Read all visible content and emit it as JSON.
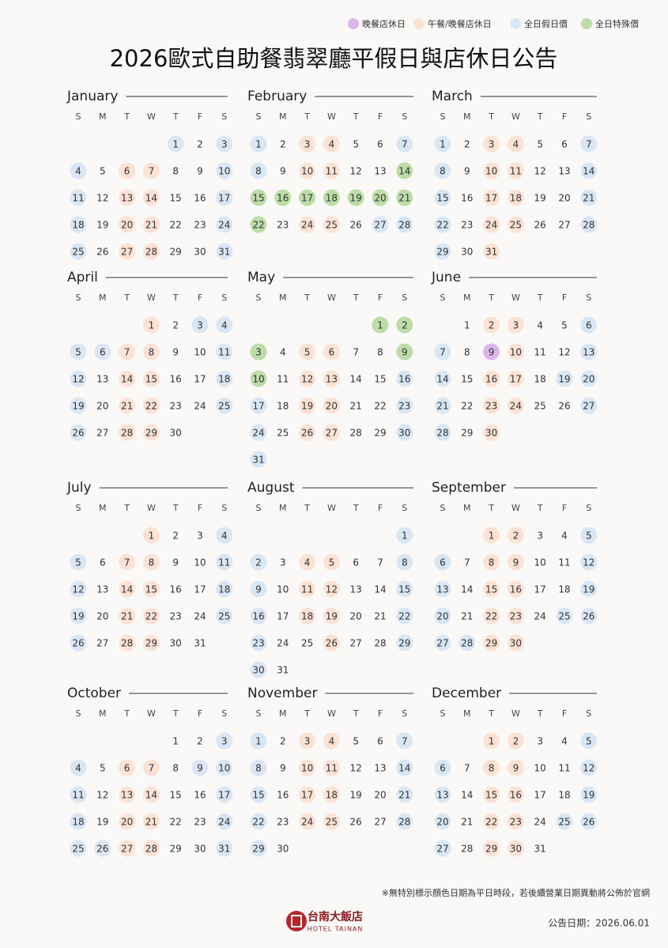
{
  "legend": [
    {
      "label": "晚餐店休日",
      "color": "#dcb5ec"
    },
    {
      "label": "午餐/晚餐店休日",
      "color": "#fbe2d5"
    },
    {
      "label": "全日假日價",
      "color": "#d9e7f5"
    },
    {
      "label": "全日特殊價",
      "color": "#bcdca8"
    }
  ],
  "title": "2026歐式自助餐翡翠廳平假日與店休日公告",
  "weekdays": [
    "S",
    "M",
    "T",
    "W",
    "T",
    "F",
    "S"
  ],
  "months": [
    {
      "name": "January",
      "first_weekday": 4,
      "days": [
        1,
        2,
        3,
        4,
        5,
        6,
        7,
        8,
        9,
        10,
        11,
        12,
        13,
        14,
        15,
        16,
        17,
        18,
        19,
        20,
        21,
        22,
        23,
        24,
        25,
        26,
        27,
        28,
        29,
        30,
        31
      ],
      "status": [
        2,
        null,
        2,
        2,
        null,
        1,
        1,
        null,
        null,
        2,
        2,
        null,
        1,
        1,
        null,
        null,
        2,
        2,
        null,
        1,
        1,
        null,
        null,
        2,
        2,
        null,
        1,
        1,
        null,
        null,
        2
      ]
    },
    {
      "name": "February",
      "first_weekday": 0,
      "days": [
        1,
        2,
        3,
        4,
        5,
        6,
        7,
        8,
        9,
        10,
        11,
        12,
        13,
        14,
        15,
        16,
        17,
        18,
        19,
        20,
        21,
        22,
        23,
        24,
        25,
        26,
        27,
        28
      ],
      "status": [
        2,
        null,
        1,
        1,
        null,
        null,
        2,
        2,
        null,
        1,
        1,
        null,
        null,
        3,
        3,
        3,
        3,
        3,
        3,
        3,
        3,
        3,
        null,
        1,
        1,
        null,
        2,
        2
      ]
    },
    {
      "name": "March",
      "first_weekday": 0,
      "days": [
        1,
        2,
        3,
        4,
        5,
        6,
        7,
        8,
        9,
        10,
        11,
        12,
        13,
        14,
        15,
        16,
        17,
        18,
        19,
        20,
        21,
        22,
        23,
        24,
        25,
        26,
        27,
        28,
        29,
        30,
        31
      ],
      "status": [
        2,
        null,
        1,
        1,
        null,
        null,
        2,
        2,
        null,
        1,
        1,
        null,
        null,
        2,
        2,
        null,
        1,
        1,
        null,
        null,
        2,
        2,
        null,
        1,
        1,
        null,
        null,
        2,
        2,
        null,
        1
      ]
    },
    {
      "name": "April",
      "first_weekday": 3,
      "days": [
        1,
        2,
        3,
        4,
        5,
        6,
        7,
        8,
        9,
        10,
        11,
        12,
        13,
        14,
        15,
        16,
        17,
        18,
        19,
        20,
        21,
        22,
        23,
        24,
        25,
        26,
        27,
        28,
        29,
        30
      ],
      "status": [
        1,
        null,
        2,
        2,
        2,
        2,
        1,
        1,
        null,
        null,
        2,
        2,
        null,
        1,
        1,
        null,
        null,
        2,
        2,
        null,
        1,
        1,
        null,
        null,
        2,
        2,
        null,
        1,
        1,
        null
      ]
    },
    {
      "name": "May",
      "first_weekday": 5,
      "days": [
        1,
        2,
        3,
        4,
        5,
        6,
        7,
        8,
        9,
        10,
        11,
        12,
        13,
        14,
        15,
        16,
        17,
        18,
        19,
        20,
        21,
        22,
        23,
        24,
        25,
        26,
        27,
        28,
        29,
        30,
        31
      ],
      "status": [
        3,
        3,
        3,
        null,
        1,
        1,
        null,
        null,
        3,
        3,
        null,
        1,
        1,
        null,
        null,
        2,
        2,
        null,
        1,
        1,
        null,
        null,
        2,
        2,
        null,
        1,
        1,
        null,
        null,
        2,
        2
      ]
    },
    {
      "name": "June",
      "first_weekday": 1,
      "days": [
        1,
        2,
        3,
        4,
        5,
        6,
        7,
        8,
        9,
        10,
        11,
        12,
        13,
        14,
        15,
        16,
        17,
        18,
        19,
        20,
        21,
        22,
        23,
        24,
        25,
        26,
        27,
        28,
        29,
        30
      ],
      "status": [
        null,
        1,
        1,
        null,
        null,
        2,
        2,
        null,
        0,
        1,
        null,
        null,
        2,
        2,
        null,
        1,
        1,
        null,
        2,
        2,
        2,
        null,
        1,
        1,
        null,
        null,
        2,
        2,
        null,
        1
      ]
    },
    {
      "name": "July",
      "first_weekday": 3,
      "days": [
        1,
        2,
        3,
        4,
        5,
        6,
        7,
        8,
        9,
        10,
        11,
        12,
        13,
        14,
        15,
        16,
        17,
        18,
        19,
        20,
        21,
        22,
        23,
        24,
        25,
        26,
        27,
        28,
        29,
        30,
        31
      ],
      "status": [
        1,
        null,
        null,
        2,
        2,
        null,
        1,
        1,
        null,
        null,
        2,
        2,
        null,
        1,
        1,
        null,
        null,
        2,
        2,
        null,
        1,
        1,
        null,
        null,
        2,
        2,
        null,
        1,
        1,
        null,
        null
      ]
    },
    {
      "name": "August",
      "first_weekday": 6,
      "days": [
        1,
        2,
        3,
        4,
        5,
        6,
        7,
        8,
        9,
        10,
        11,
        12,
        13,
        14,
        15,
        16,
        17,
        18,
        19,
        20,
        21,
        22,
        23,
        24,
        25,
        26,
        27,
        28,
        29,
        30,
        31
      ],
      "status": [
        2,
        2,
        null,
        1,
        1,
        null,
        null,
        2,
        2,
        null,
        1,
        1,
        null,
        null,
        2,
        2,
        null,
        1,
        1,
        null,
        null,
        2,
        2,
        null,
        null,
        1,
        null,
        null,
        2,
        2,
        null
      ]
    },
    {
      "name": "September",
      "first_weekday": 2,
      "days": [
        1,
        2,
        3,
        4,
        5,
        6,
        7,
        8,
        9,
        10,
        11,
        12,
        13,
        14,
        15,
        16,
        17,
        18,
        19,
        20,
        21,
        22,
        23,
        24,
        25,
        26,
        27,
        28,
        29,
        30
      ],
      "status": [
        1,
        1,
        null,
        null,
        2,
        2,
        null,
        1,
        1,
        null,
        null,
        2,
        2,
        null,
        1,
        1,
        null,
        null,
        2,
        2,
        null,
        1,
        1,
        null,
        2,
        2,
        2,
        2,
        1,
        1
      ]
    },
    {
      "name": "October",
      "first_weekday": 4,
      "days": [
        1,
        2,
        3,
        4,
        5,
        6,
        7,
        8,
        9,
        10,
        11,
        12,
        13,
        14,
        15,
        16,
        17,
        18,
        19,
        20,
        21,
        22,
        23,
        24,
        25,
        26,
        27,
        28,
        29,
        30,
        31
      ],
      "status": [
        null,
        null,
        2,
        2,
        null,
        1,
        1,
        null,
        2,
        2,
        2,
        null,
        1,
        1,
        null,
        null,
        2,
        2,
        null,
        1,
        1,
        null,
        null,
        2,
        2,
        2,
        1,
        1,
        null,
        null,
        2
      ]
    },
    {
      "name": "November",
      "first_weekday": 0,
      "days": [
        1,
        2,
        3,
        4,
        5,
        6,
        7,
        8,
        9,
        10,
        11,
        12,
        13,
        14,
        15,
        16,
        17,
        18,
        19,
        20,
        21,
        22,
        23,
        24,
        25,
        26,
        27,
        28,
        29,
        30
      ],
      "status": [
        2,
        null,
        1,
        1,
        null,
        null,
        2,
        2,
        null,
        1,
        1,
        null,
        null,
        2,
        2,
        null,
        1,
        1,
        null,
        null,
        2,
        2,
        null,
        1,
        1,
        null,
        null,
        2,
        2,
        null
      ]
    },
    {
      "name": "December",
      "first_weekday": 2,
      "days": [
        1,
        2,
        3,
        4,
        5,
        6,
        7,
        8,
        9,
        10,
        11,
        12,
        13,
        14,
        15,
        16,
        17,
        18,
        19,
        20,
        21,
        22,
        23,
        24,
        25,
        26,
        27,
        28,
        29,
        30,
        31
      ],
      "status": [
        1,
        1,
        null,
        null,
        2,
        2,
        null,
        1,
        1,
        null,
        null,
        2,
        2,
        null,
        1,
        1,
        null,
        null,
        2,
        2,
        null,
        1,
        1,
        null,
        2,
        2,
        2,
        null,
        1,
        1,
        null
      ]
    }
  ],
  "footer": {
    "note": "※無特別標示顏色日期為平日時段，若後續營業日期異動將公佈於官網",
    "logo_name": "台南大飯店",
    "logo_sub": "HOTEL TAINAN",
    "date": "公告日期：2026.06.01"
  }
}
